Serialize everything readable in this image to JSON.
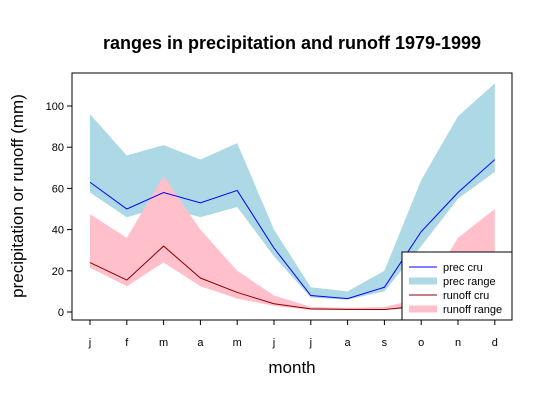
{
  "chart_data": {
    "type": "area",
    "title": "ranges in precipitation and runoff 1979-1999",
    "xlabel": "month",
    "ylabel": "precipitation or runoff (mm)",
    "categories": [
      "j",
      "f",
      "m",
      "a",
      "m",
      "j",
      "j",
      "a",
      "s",
      "o",
      "n",
      "d"
    ],
    "ylim": [
      -5,
      117
    ],
    "yticks": [
      0,
      20,
      40,
      60,
      80,
      100
    ],
    "series": [
      {
        "name": "prec cru",
        "kind": "line",
        "color": "#0000ff",
        "values": [
          63,
          50,
          58,
          53,
          59,
          31,
          8,
          6.5,
          12,
          39,
          58,
          74
        ]
      },
      {
        "name": "prec range",
        "kind": "band",
        "color": "#add8e6",
        "upper": [
          96,
          76,
          81,
          74,
          82,
          40,
          12,
          10,
          20,
          64,
          95,
          111
        ],
        "lower": [
          58,
          46,
          51,
          46,
          51,
          27,
          7,
          6,
          10,
          32,
          55,
          68
        ]
      },
      {
        "name": "runoff cru",
        "kind": "line",
        "color": "#8b0000",
        "values": [
          24,
          15.5,
          32,
          16.5,
          9.5,
          4,
          1.5,
          1.3,
          1.2,
          3,
          7,
          13
        ]
      },
      {
        "name": "runoff range",
        "kind": "band",
        "color": "#ffc0cb",
        "upper": [
          47.5,
          36,
          66,
          40,
          20,
          8,
          2.5,
          2,
          2.5,
          6.5,
          36,
          50
        ],
        "lower": [
          21.5,
          12.5,
          24,
          12.5,
          6.5,
          3,
          1,
          1,
          1,
          2,
          4,
          8
        ]
      }
    ],
    "legend": {
      "position": "bottom-right",
      "items": [
        {
          "label": "prec cru",
          "style": "line",
          "color": "#0000ff"
        },
        {
          "label": "prec range",
          "style": "band",
          "color": "#add8e6"
        },
        {
          "label": "runoff cru",
          "style": "line",
          "color": "#8b0000"
        },
        {
          "label": "runoff range",
          "style": "band",
          "color": "#ffc0cb"
        }
      ]
    }
  }
}
